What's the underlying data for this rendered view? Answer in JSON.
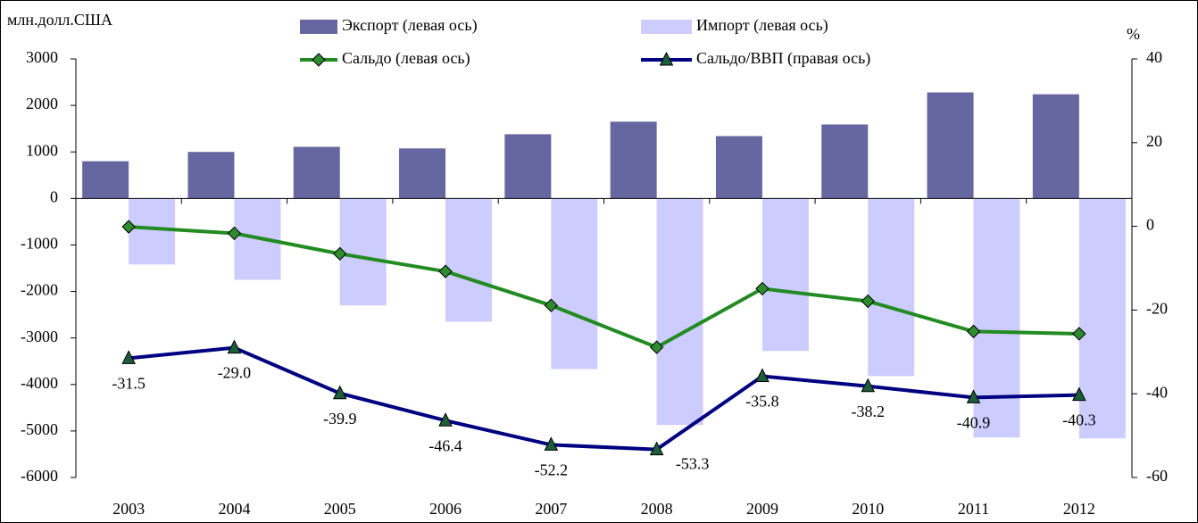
{
  "chart_data": {
    "type": "combo",
    "ylabel": "млн.долл.США",
    "y2label": "%",
    "categories": [
      "2003",
      "2004",
      "2005",
      "2006",
      "2007",
      "2008",
      "2009",
      "2010",
      "2011",
      "2012"
    ],
    "series": [
      {
        "name": "Экспорт (левая ось)",
        "type": "bar",
        "color": "#6667a0",
        "values": [
          800,
          1000,
          1110,
          1075,
          1380,
          1650,
          1340,
          1590,
          2280,
          2240
        ]
      },
      {
        "name": "Импорт (левая ось)",
        "type": "bar",
        "color": "#ccccff",
        "values": [
          -1420,
          -1750,
          -2300,
          -2650,
          -3670,
          -4870,
          -3280,
          -3820,
          -5140,
          -5160
        ]
      },
      {
        "name": "Сальдо (левая ось)",
        "type": "line",
        "color": "#228b22",
        "marker": "diamond",
        "marker_color": "#2e8b2e",
        "values": [
          -610,
          -750,
          -1190,
          -1570,
          -2300,
          -3200,
          -1940,
          -2210,
          -2860,
          -2910
        ]
      },
      {
        "name": "Сальдо/ВВП (правая ось)",
        "type": "line",
        "axis": "y2",
        "color": "#000080",
        "marker": "triangle",
        "marker_color": "#1d5e3a",
        "values": [
          -31.5,
          -29,
          -39.9,
          -46.4,
          -52.2,
          -53.3,
          -35.8,
          -38.2,
          -40.9,
          -40.3
        ],
        "value_labels": [
          "-31.5",
          "-29.0",
          "-39.9",
          "-46.4",
          "-52.2",
          "-53.3",
          "-35.8",
          "-38.2",
          "-40.9",
          "-40.3"
        ]
      }
    ],
    "ylim": [
      -6000,
      3000
    ],
    "yticks": [
      -6000,
      -5000,
      -4000,
      -3000,
      -2000,
      -1000,
      0,
      1000,
      2000,
      3000
    ],
    "y2lim": [
      -60,
      40
    ],
    "y2ticks": [
      -60,
      -40,
      -20,
      0,
      20,
      40
    ]
  }
}
